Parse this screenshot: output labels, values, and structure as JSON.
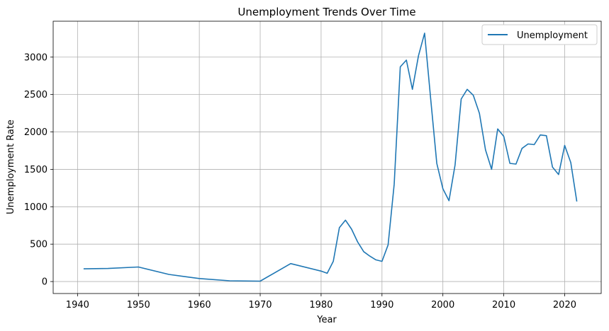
{
  "chart_data": {
    "type": "line",
    "title": "Unemployment Trends Over Time",
    "xlabel": "Year",
    "ylabel": "Unemployment Rate",
    "xlim": [
      1936,
      2026
    ],
    "ylim": [
      -160,
      3480
    ],
    "xticks": [
      1940,
      1950,
      1960,
      1970,
      1980,
      1990,
      2000,
      2010,
      2020
    ],
    "yticks": [
      0,
      500,
      1000,
      1500,
      2000,
      2500,
      3000
    ],
    "grid": true,
    "legend_position": "top-right",
    "series": [
      {
        "name": "Unemployment",
        "color": "#1f77b4",
        "x": [
          1941,
          1945,
          1950,
          1955,
          1960,
          1965,
          1970,
          1975,
          1980,
          1981,
          1982,
          1983,
          1984,
          1985,
          1986,
          1987,
          1988,
          1989,
          1990,
          1991,
          1992,
          1993,
          1994,
          1995,
          1996,
          1997,
          1998,
          1999,
          2000,
          2001,
          2002,
          2003,
          2004,
          2005,
          2006,
          2007,
          2008,
          2009,
          2010,
          2011,
          2012,
          2013,
          2014,
          2015,
          2016,
          2017,
          2018,
          2019,
          2020,
          2021,
          2022
        ],
        "y": [
          170,
          175,
          195,
          95,
          40,
          10,
          5,
          240,
          140,
          110,
          270,
          720,
          820,
          700,
          530,
          400,
          340,
          290,
          270,
          490,
          1300,
          2870,
          2960,
          2570,
          3020,
          3320,
          2440,
          1580,
          1240,
          1080,
          1560,
          2440,
          2570,
          2490,
          2250,
          1760,
          1500,
          2040,
          1940,
          1580,
          1570,
          1780,
          1840,
          1830,
          1960,
          1950,
          1530,
          1430,
          1820,
          1590,
          1070
        ]
      }
    ]
  }
}
